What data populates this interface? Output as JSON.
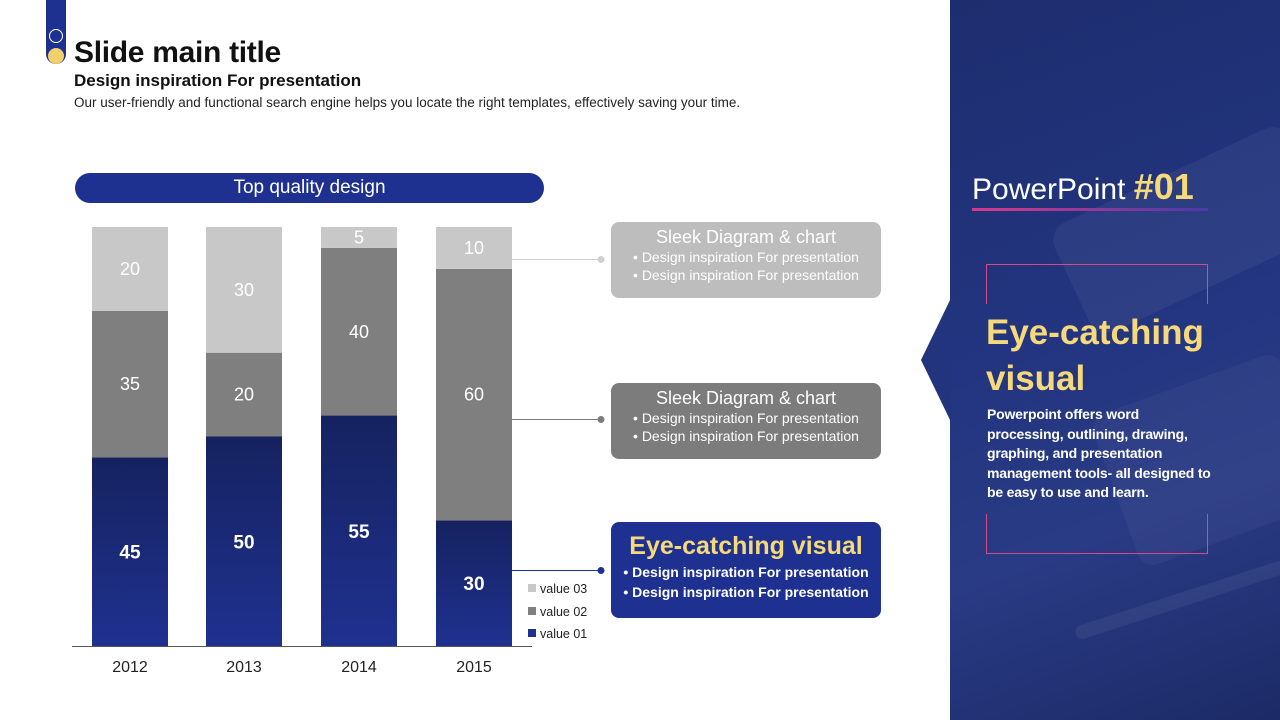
{
  "header": {
    "title": "Slide main title",
    "subtitle": "Design inspiration For presentation",
    "description": "Our user-friendly and functional search engine helps you locate the right templates, effectively saving your time."
  },
  "chart_pill": "Top quality design",
  "chart_data": {
    "type": "bar",
    "stacked": true,
    "categories": [
      "2012",
      "2013",
      "2014",
      "2015"
    ],
    "series": [
      {
        "name": "value 01",
        "values": [
          45,
          50,
          55,
          30
        ],
        "color": "#1f3190"
      },
      {
        "name": "value 02",
        "values": [
          35,
          20,
          40,
          60
        ],
        "color": "#7f7f7f"
      },
      {
        "name": "value 03",
        "values": [
          20,
          30,
          5,
          10
        ],
        "color": "#c8c8c8"
      }
    ],
    "legend": [
      "value 03",
      "value 02",
      "value 01"
    ],
    "legend_position": "bottom-right",
    "ylim": [
      0,
      100
    ]
  },
  "callouts": [
    {
      "title": "Sleek Diagram & chart",
      "bullets": [
        "• Design inspiration For presentation",
        "• Design inspiration For presentation"
      ]
    },
    {
      "title": "Sleek Diagram & chart",
      "bullets": [
        "• Design inspiration For presentation",
        "• Design inspiration For presentation"
      ]
    },
    {
      "title": "Eye-catching visual",
      "bullets": [
        "• Design inspiration For presentation",
        "• Design inspiration For presentation"
      ]
    }
  ],
  "panel": {
    "pp_label": "PowerPoint",
    "pp_number": "#01",
    "eye_title_1": "Eye-catching",
    "eye_title_2": "visual",
    "body": "Powerpoint offers word processing, outlining, drawing, graphing, and presentation management tools- all designed to be easy to use and learn."
  },
  "colors": {
    "primary": "#1f3190",
    "accent": "#f5d97a",
    "gray_dark": "#7f7f7f",
    "gray_light": "#c8c8c8",
    "pink": "#d44a8c"
  }
}
